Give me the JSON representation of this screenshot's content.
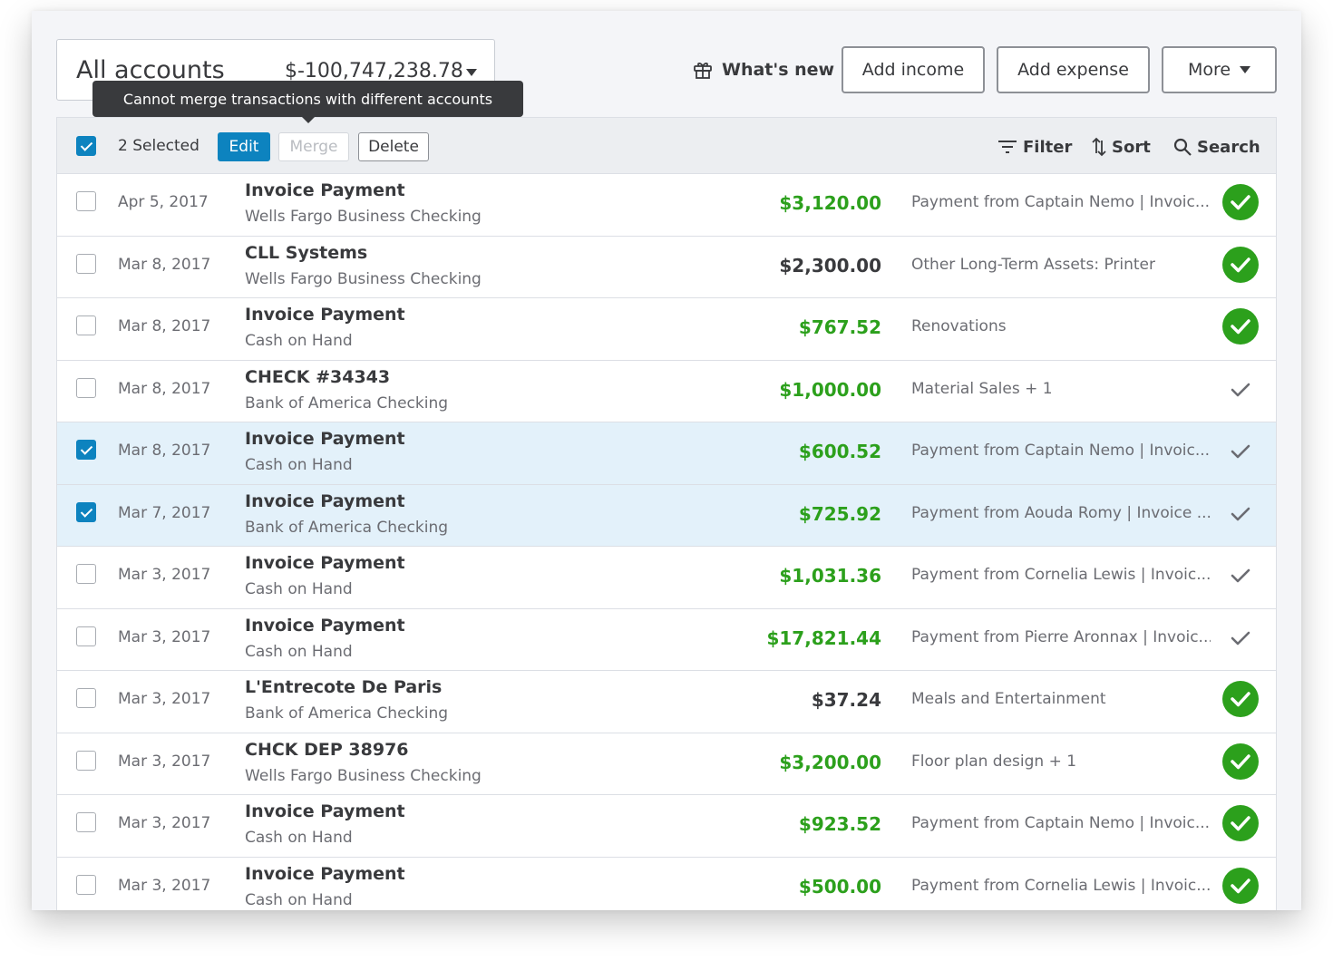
{
  "account_selector": {
    "name": "All accounts",
    "balance": "$-100,747,238.78"
  },
  "header": {
    "whats_new": "What's new",
    "add_income": "Add income",
    "add_expense": "Add expense",
    "more": "More"
  },
  "tooltip": {
    "text": "Cannot merge transactions with different accounts"
  },
  "toolbar": {
    "selected_count": "2 Selected",
    "edit": "Edit",
    "merge": "Merge",
    "delete": "Delete",
    "filter": "Filter",
    "sort": "Sort",
    "search": "Search"
  },
  "colors": {
    "accent": "#0d83bf",
    "income": "#2ca01c",
    "status_green": "#2ca01c",
    "selected_row": "#e3f1fa"
  },
  "transactions": [
    {
      "date": "Apr 5, 2017",
      "payee": "Invoice Payment",
      "account": "Wells Fargo Business Checking",
      "amount": "$3,120.00",
      "type": "income",
      "category": "Payment from Captain Nemo | Invoic...",
      "status": "matched",
      "selected": false
    },
    {
      "date": "Mar 8, 2017",
      "payee": "CLL Systems",
      "account": "Wells Fargo Business Checking",
      "amount": "$2,300.00",
      "type": "expense",
      "category": "Other Long-Term Assets: Printer",
      "status": "matched",
      "selected": false
    },
    {
      "date": "Mar 8, 2017",
      "payee": "Invoice Payment",
      "account": "Cash on Hand",
      "amount": "$767.52",
      "type": "income",
      "category": "Renovations",
      "status": "matched",
      "selected": false
    },
    {
      "date": "Mar 8, 2017",
      "payee": "CHECK #34343",
      "account": "Bank of America Checking",
      "amount": "$1,000.00",
      "type": "income",
      "category": "Material Sales + 1",
      "status": "reviewed",
      "selected": false
    },
    {
      "date": "Mar 8, 2017",
      "payee": "Invoice Payment",
      "account": "Cash on Hand",
      "amount": "$600.52",
      "type": "income",
      "category": "Payment from Captain Nemo | Invoic...",
      "status": "reviewed",
      "selected": true
    },
    {
      "date": "Mar 7, 2017",
      "payee": "Invoice Payment",
      "account": "Bank of America Checking",
      "amount": "$725.92",
      "type": "income",
      "category": "Payment from Aouda Romy | Invoice ...",
      "status": "reviewed",
      "selected": true
    },
    {
      "date": "Mar 3, 2017",
      "payee": "Invoice Payment",
      "account": "Cash on Hand",
      "amount": "$1,031.36",
      "type": "income",
      "category": "Payment from Cornelia Lewis | Invoic...",
      "status": "reviewed",
      "selected": false
    },
    {
      "date": "Mar 3, 2017",
      "payee": "Invoice Payment",
      "account": "Cash on Hand",
      "amount": "$17,821.44",
      "type": "income",
      "category": "Payment from Pierre Aronnax | Invoic...",
      "status": "reviewed",
      "selected": false
    },
    {
      "date": "Mar 3, 2017",
      "payee": "L'Entrecote De Paris",
      "account": "Bank of America Checking",
      "amount": "$37.24",
      "type": "expense",
      "category": "Meals and Entertainment",
      "status": "matched",
      "selected": false
    },
    {
      "date": "Mar 3, 2017",
      "payee": "CHCK DEP 38976",
      "account": "Wells Fargo Business Checking",
      "amount": "$3,200.00",
      "type": "income",
      "category": "Floor plan design + 1",
      "status": "matched",
      "selected": false
    },
    {
      "date": "Mar 3, 2017",
      "payee": "Invoice Payment",
      "account": "Cash on Hand",
      "amount": "$923.52",
      "type": "income",
      "category": "Payment from Captain Nemo | Invoic...",
      "status": "matched",
      "selected": false
    },
    {
      "date": "Mar 3, 2017",
      "payee": "Invoice Payment",
      "account": "Cash on Hand",
      "amount": "$500.00",
      "type": "income",
      "category": "Payment from Cornelia Lewis | Invoic...",
      "status": "matched",
      "selected": false
    }
  ]
}
